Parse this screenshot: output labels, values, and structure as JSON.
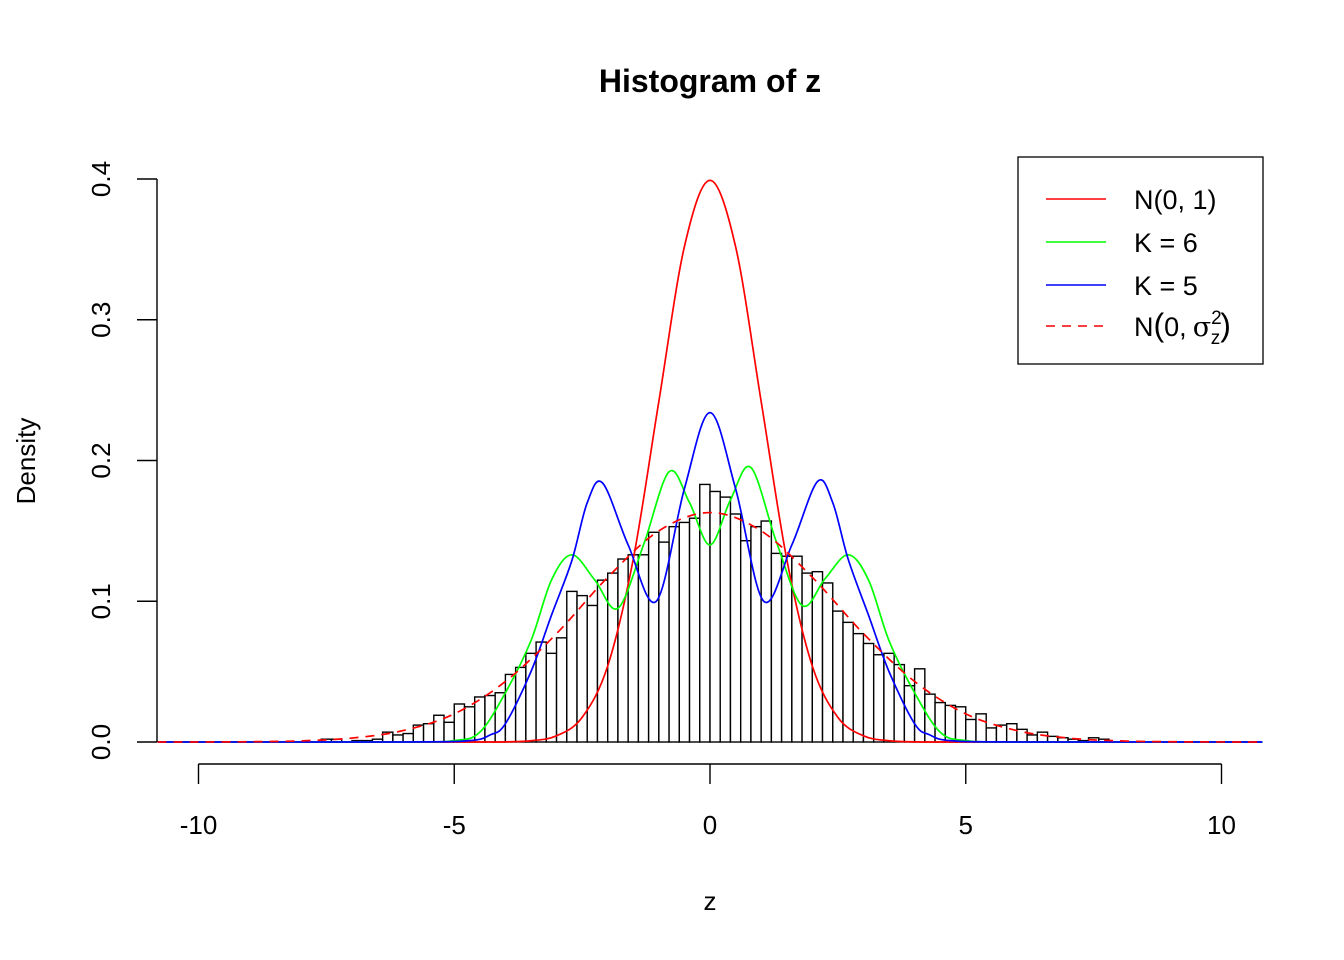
{
  "chart_data": {
    "type": "bar",
    "title": "Histogram of z",
    "xlabel": "z",
    "ylabel": "Density",
    "xlim": [
      -10.8,
      10.8
    ],
    "ylim": [
      0,
      0.4
    ],
    "x_ticks": [
      "-10",
      "-5",
      "0",
      "5",
      "10"
    ],
    "x_tick_values": [
      -10,
      -5,
      0,
      5,
      10
    ],
    "y_ticks": [
      "0.0",
      "0.1",
      "0.2",
      "0.3",
      "0.4"
    ],
    "y_tick_values": [
      0,
      0.1,
      0.2,
      0.3,
      0.4
    ],
    "grid": false,
    "legend_position": "top-right",
    "histogram": {
      "bin_start": -7.6,
      "bin_width": 0.2,
      "densities": [
        0.002,
        0.002,
        0,
        0.001,
        0.001,
        0.002,
        0.007,
        0.005,
        0.006,
        0.012,
        0.013,
        0.019,
        0.014,
        0.027,
        0.025,
        0.032,
        0.033,
        0.035,
        0.048,
        0.053,
        0.063,
        0.071,
        0.063,
        0.074,
        0.107,
        0.104,
        0.097,
        0.115,
        0.12,
        0.13,
        0.133,
        0.133,
        0.149,
        0.142,
        0.153,
        0.156,
        0.159,
        0.183,
        0.178,
        0.174,
        0.162,
        0.143,
        0.153,
        0.157,
        0.134,
        0.132,
        0.132,
        0.12,
        0.121,
        0.113,
        0.093,
        0.085,
        0.077,
        0.07,
        0.062,
        0.063,
        0.055,
        0.04,
        0.052,
        0.034,
        0.028,
        0.026,
        0.025,
        0.016,
        0.02,
        0.01,
        0.012,
        0.013,
        0.009,
        0.005,
        0.007,
        0.004,
        0.003,
        0.002,
        0.001,
        0.003,
        0.002
      ],
      "fill": "#ffffff",
      "stroke": "#000000"
    },
    "series": [
      {
        "name": "N(0, 1)",
        "color": "#ff0000",
        "dash": false,
        "points": [
          [
            -10.8,
            0
          ],
          [
            -5,
            0
          ],
          [
            -4.5,
            2e-05
          ],
          [
            -4,
            0.0001
          ],
          [
            -3.5,
            0.0009
          ],
          [
            -3,
            0.0044
          ],
          [
            -2.5,
            0.0175
          ],
          [
            -2,
            0.054
          ],
          [
            -1.5,
            0.13
          ],
          [
            -1,
            0.242
          ],
          [
            -0.5,
            0.352
          ],
          [
            0,
            0.399
          ],
          [
            0.5,
            0.352
          ],
          [
            1,
            0.242
          ],
          [
            1.5,
            0.13
          ],
          [
            2,
            0.054
          ],
          [
            2.5,
            0.0175
          ],
          [
            3,
            0.0044
          ],
          [
            3.5,
            0.0009
          ],
          [
            4,
            0.0001
          ],
          [
            4.5,
            2e-05
          ],
          [
            5,
            0
          ],
          [
            10.8,
            0
          ]
        ]
      },
      {
        "name": "K = 6",
        "color": "#00ff00",
        "dash": false,
        "points": [
          [
            -10.8,
            0
          ],
          [
            -6,
            0
          ],
          [
            -5,
            0.001
          ],
          [
            -4.5,
            0.007
          ],
          [
            -4,
            0.035
          ],
          [
            -3.5,
            0.072
          ],
          [
            -3.1,
            0.115
          ],
          [
            -2.7,
            0.133
          ],
          [
            -2.25,
            0.115
          ],
          [
            -1.8,
            0.095
          ],
          [
            -1.3,
            0.14
          ],
          [
            -0.8,
            0.192
          ],
          [
            -0.4,
            0.17
          ],
          [
            0,
            0.14
          ],
          [
            0.4,
            0.172
          ],
          [
            0.8,
            0.195
          ],
          [
            1.3,
            0.142
          ],
          [
            1.8,
            0.097
          ],
          [
            2.25,
            0.116
          ],
          [
            2.7,
            0.133
          ],
          [
            3.1,
            0.115
          ],
          [
            3.5,
            0.072
          ],
          [
            4,
            0.035
          ],
          [
            4.5,
            0.007
          ],
          [
            5,
            0.001
          ],
          [
            6,
            0
          ],
          [
            10.8,
            0
          ]
        ]
      },
      {
        "name": "K = 5",
        "color": "#0000ff",
        "dash": false,
        "points": [
          [
            -10.8,
            0
          ],
          [
            -6,
            0
          ],
          [
            -4.7,
            0.001
          ],
          [
            -4.3,
            0.005
          ],
          [
            -4,
            0.013
          ],
          [
            -3.5,
            0.05
          ],
          [
            -3.1,
            0.09
          ],
          [
            -2.7,
            0.129
          ],
          [
            -2.4,
            0.17
          ],
          [
            -2.1,
            0.184
          ],
          [
            -1.6,
            0.14
          ],
          [
            -1.05,
            0.1
          ],
          [
            -0.5,
            0.18
          ],
          [
            0,
            0.234
          ],
          [
            0.5,
            0.18
          ],
          [
            1.05,
            0.1
          ],
          [
            1.6,
            0.14
          ],
          [
            2.1,
            0.185
          ],
          [
            2.4,
            0.17
          ],
          [
            2.7,
            0.13
          ],
          [
            3.1,
            0.09
          ],
          [
            3.5,
            0.05
          ],
          [
            4,
            0.013
          ],
          [
            4.3,
            0.005
          ],
          [
            4.7,
            0.001
          ],
          [
            6,
            0
          ],
          [
            10.8,
            0
          ]
        ]
      },
      {
        "name": "N(0, σz²)",
        "color": "#ff0000",
        "dash": true,
        "points": [
          [
            -10.8,
            0
          ],
          [
            -10,
            4e-05
          ],
          [
            -9,
            0.0002
          ],
          [
            -8,
            0.0008
          ],
          [
            -7,
            0.0028
          ],
          [
            -6,
            0.0081
          ],
          [
            -5,
            0.02
          ],
          [
            -4,
            0.043
          ],
          [
            -3,
            0.077
          ],
          [
            -2,
            0.117
          ],
          [
            -1,
            0.15
          ],
          [
            0,
            0.163
          ],
          [
            1,
            0.15
          ],
          [
            2,
            0.117
          ],
          [
            3,
            0.077
          ],
          [
            4,
            0.043
          ],
          [
            5,
            0.02
          ],
          [
            6,
            0.0081
          ],
          [
            7,
            0.0028
          ],
          [
            8,
            0.0008
          ],
          [
            9,
            0.0002
          ],
          [
            10,
            4e-05
          ],
          [
            10.8,
            0
          ]
        ]
      }
    ],
    "legend": {
      "n01": "N(0, 1)",
      "k6": "K = 6",
      "k5": "K = 5",
      "nsig_prefix": "N",
      "nsig_open": "(",
      "nsig_zero": "0,",
      "nsig_sigma": "σ",
      "nsig_sub": "z",
      "nsig_sup": "2",
      "nsig_close": ")"
    }
  }
}
